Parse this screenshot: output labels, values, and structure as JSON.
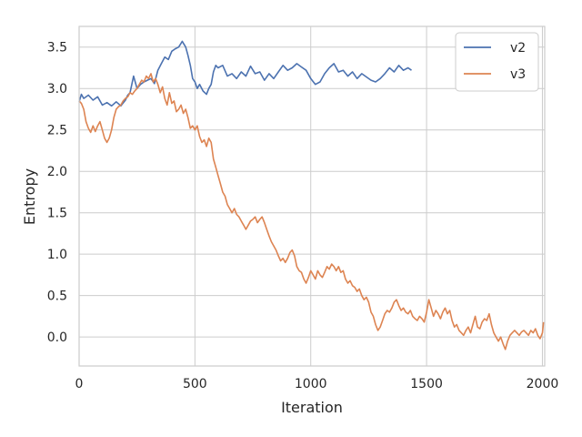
{
  "chart_data": {
    "type": "line",
    "xlabel": "Iteration",
    "ylabel": "Entropy",
    "xlim": [
      0,
      2010
    ],
    "ylim": [
      -0.35,
      3.75
    ],
    "xticks": [
      0,
      500,
      1000,
      1500,
      2000
    ],
    "yticks": [
      0.0,
      0.5,
      1.0,
      1.5,
      2.0,
      2.5,
      3.0,
      3.5
    ],
    "ytick_labels": [
      "0.0",
      "0.5",
      "1.0",
      "1.5",
      "2.0",
      "2.5",
      "3.0",
      "3.5"
    ],
    "grid": true,
    "legend_position": "top-right",
    "series": [
      {
        "name": "v2",
        "color": "#4c72b0",
        "points": [
          [
            0,
            2.84
          ],
          [
            10,
            2.93
          ],
          [
            20,
            2.88
          ],
          [
            40,
            2.92
          ],
          [
            60,
            2.86
          ],
          [
            80,
            2.9
          ],
          [
            100,
            2.8
          ],
          [
            120,
            2.83
          ],
          [
            140,
            2.79
          ],
          [
            160,
            2.84
          ],
          [
            180,
            2.79
          ],
          [
            200,
            2.86
          ],
          [
            210,
            2.92
          ],
          [
            220,
            2.95
          ],
          [
            235,
            3.15
          ],
          [
            250,
            3.0
          ],
          [
            265,
            3.05
          ],
          [
            280,
            3.08
          ],
          [
            295,
            3.1
          ],
          [
            310,
            3.12
          ],
          [
            325,
            3.06
          ],
          [
            340,
            3.22
          ],
          [
            355,
            3.3
          ],
          [
            370,
            3.38
          ],
          [
            385,
            3.35
          ],
          [
            400,
            3.45
          ],
          [
            415,
            3.48
          ],
          [
            430,
            3.5
          ],
          [
            445,
            3.57
          ],
          [
            460,
            3.5
          ],
          [
            470,
            3.4
          ],
          [
            480,
            3.28
          ],
          [
            490,
            3.12
          ],
          [
            500,
            3.08
          ],
          [
            510,
            3.0
          ],
          [
            520,
            3.05
          ],
          [
            535,
            2.97
          ],
          [
            550,
            2.93
          ],
          [
            560,
            3.0
          ],
          [
            570,
            3.05
          ],
          [
            580,
            3.2
          ],
          [
            590,
            3.28
          ],
          [
            600,
            3.25
          ],
          [
            620,
            3.28
          ],
          [
            640,
            3.15
          ],
          [
            660,
            3.18
          ],
          [
            680,
            3.12
          ],
          [
            700,
            3.2
          ],
          [
            720,
            3.15
          ],
          [
            740,
            3.27
          ],
          [
            760,
            3.18
          ],
          [
            780,
            3.2
          ],
          [
            800,
            3.1
          ],
          [
            820,
            3.18
          ],
          [
            840,
            3.12
          ],
          [
            860,
            3.2
          ],
          [
            880,
            3.28
          ],
          [
            900,
            3.22
          ],
          [
            920,
            3.25
          ],
          [
            940,
            3.3
          ],
          [
            960,
            3.26
          ],
          [
            980,
            3.22
          ],
          [
            1000,
            3.12
          ],
          [
            1020,
            3.05
          ],
          [
            1040,
            3.08
          ],
          [
            1060,
            3.18
          ],
          [
            1080,
            3.25
          ],
          [
            1100,
            3.3
          ],
          [
            1120,
            3.2
          ],
          [
            1140,
            3.22
          ],
          [
            1160,
            3.15
          ],
          [
            1180,
            3.2
          ],
          [
            1200,
            3.12
          ],
          [
            1220,
            3.18
          ],
          [
            1240,
            3.14
          ],
          [
            1260,
            3.1
          ],
          [
            1280,
            3.08
          ],
          [
            1300,
            3.12
          ],
          [
            1320,
            3.18
          ],
          [
            1340,
            3.25
          ],
          [
            1360,
            3.2
          ],
          [
            1380,
            3.28
          ],
          [
            1400,
            3.22
          ],
          [
            1420,
            3.25
          ],
          [
            1435,
            3.22
          ]
        ]
      },
      {
        "name": "v3",
        "color": "#dd8452",
        "points": [
          [
            0,
            2.85
          ],
          [
            10,
            2.82
          ],
          [
            20,
            2.75
          ],
          [
            30,
            2.6
          ],
          [
            40,
            2.52
          ],
          [
            50,
            2.47
          ],
          [
            60,
            2.55
          ],
          [
            70,
            2.48
          ],
          [
            80,
            2.55
          ],
          [
            90,
            2.6
          ],
          [
            100,
            2.5
          ],
          [
            110,
            2.4
          ],
          [
            120,
            2.35
          ],
          [
            130,
            2.4
          ],
          [
            140,
            2.5
          ],
          [
            150,
            2.65
          ],
          [
            160,
            2.75
          ],
          [
            170,
            2.78
          ],
          [
            180,
            2.8
          ],
          [
            190,
            2.85
          ],
          [
            200,
            2.88
          ],
          [
            210,
            2.9
          ],
          [
            220,
            2.95
          ],
          [
            230,
            2.93
          ],
          [
            240,
            2.97
          ],
          [
            250,
            3.0
          ],
          [
            260,
            3.05
          ],
          [
            270,
            3.1
          ],
          [
            280,
            3.08
          ],
          [
            290,
            3.15
          ],
          [
            300,
            3.12
          ],
          [
            310,
            3.18
          ],
          [
            320,
            3.08
          ],
          [
            330,
            3.12
          ],
          [
            340,
            3.05
          ],
          [
            350,
            2.95
          ],
          [
            360,
            3.02
          ],
          [
            370,
            2.88
          ],
          [
            380,
            2.8
          ],
          [
            390,
            2.95
          ],
          [
            400,
            2.82
          ],
          [
            410,
            2.85
          ],
          [
            420,
            2.72
          ],
          [
            430,
            2.75
          ],
          [
            440,
            2.8
          ],
          [
            450,
            2.7
          ],
          [
            460,
            2.75
          ],
          [
            470,
            2.65
          ],
          [
            480,
            2.52
          ],
          [
            490,
            2.55
          ],
          [
            500,
            2.5
          ],
          [
            510,
            2.55
          ],
          [
            520,
            2.42
          ],
          [
            530,
            2.35
          ],
          [
            540,
            2.38
          ],
          [
            550,
            2.3
          ],
          [
            560,
            2.4
          ],
          [
            570,
            2.35
          ],
          [
            580,
            2.15
          ],
          [
            590,
            2.05
          ],
          [
            600,
            1.95
          ],
          [
            610,
            1.85
          ],
          [
            620,
            1.75
          ],
          [
            630,
            1.7
          ],
          [
            640,
            1.6
          ],
          [
            650,
            1.55
          ],
          [
            660,
            1.5
          ],
          [
            670,
            1.55
          ],
          [
            680,
            1.48
          ],
          [
            690,
            1.45
          ],
          [
            700,
            1.4
          ],
          [
            710,
            1.35
          ],
          [
            720,
            1.3
          ],
          [
            730,
            1.35
          ],
          [
            740,
            1.4
          ],
          [
            750,
            1.42
          ],
          [
            760,
            1.45
          ],
          [
            770,
            1.38
          ],
          [
            780,
            1.42
          ],
          [
            790,
            1.45
          ],
          [
            800,
            1.38
          ],
          [
            810,
            1.3
          ],
          [
            820,
            1.22
          ],
          [
            830,
            1.15
          ],
          [
            840,
            1.1
          ],
          [
            850,
            1.05
          ],
          [
            860,
            0.98
          ],
          [
            870,
            0.92
          ],
          [
            880,
            0.95
          ],
          [
            890,
            0.9
          ],
          [
            900,
            0.95
          ],
          [
            910,
            1.02
          ],
          [
            920,
            1.05
          ],
          [
            930,
            0.98
          ],
          [
            940,
            0.85
          ],
          [
            950,
            0.8
          ],
          [
            960,
            0.78
          ],
          [
            970,
            0.7
          ],
          [
            980,
            0.65
          ],
          [
            990,
            0.72
          ],
          [
            1000,
            0.8
          ],
          [
            1010,
            0.75
          ],
          [
            1020,
            0.7
          ],
          [
            1030,
            0.8
          ],
          [
            1040,
            0.75
          ],
          [
            1050,
            0.72
          ],
          [
            1060,
            0.78
          ],
          [
            1070,
            0.85
          ],
          [
            1080,
            0.82
          ],
          [
            1090,
            0.88
          ],
          [
            1100,
            0.85
          ],
          [
            1110,
            0.8
          ],
          [
            1120,
            0.85
          ],
          [
            1130,
            0.78
          ],
          [
            1140,
            0.8
          ],
          [
            1150,
            0.7
          ],
          [
            1160,
            0.65
          ],
          [
            1170,
            0.68
          ],
          [
            1180,
            0.62
          ],
          [
            1190,
            0.6
          ],
          [
            1200,
            0.55
          ],
          [
            1210,
            0.58
          ],
          [
            1220,
            0.5
          ],
          [
            1230,
            0.45
          ],
          [
            1240,
            0.48
          ],
          [
            1250,
            0.42
          ],
          [
            1260,
            0.3
          ],
          [
            1270,
            0.25
          ],
          [
            1280,
            0.15
          ],
          [
            1290,
            0.08
          ],
          [
            1300,
            0.12
          ],
          [
            1310,
            0.2
          ],
          [
            1320,
            0.28
          ],
          [
            1330,
            0.32
          ],
          [
            1340,
            0.3
          ],
          [
            1350,
            0.35
          ],
          [
            1360,
            0.42
          ],
          [
            1370,
            0.45
          ],
          [
            1380,
            0.38
          ],
          [
            1390,
            0.32
          ],
          [
            1400,
            0.35
          ],
          [
            1410,
            0.3
          ],
          [
            1420,
            0.28
          ],
          [
            1430,
            0.32
          ],
          [
            1440,
            0.25
          ],
          [
            1450,
            0.22
          ],
          [
            1460,
            0.2
          ],
          [
            1470,
            0.25
          ],
          [
            1480,
            0.22
          ],
          [
            1490,
            0.18
          ],
          [
            1500,
            0.3
          ],
          [
            1510,
            0.45
          ],
          [
            1520,
            0.35
          ],
          [
            1530,
            0.25
          ],
          [
            1540,
            0.32
          ],
          [
            1550,
            0.28
          ],
          [
            1560,
            0.22
          ],
          [
            1570,
            0.3
          ],
          [
            1580,
            0.35
          ],
          [
            1590,
            0.28
          ],
          [
            1600,
            0.32
          ],
          [
            1610,
            0.2
          ],
          [
            1620,
            0.12
          ],
          [
            1630,
            0.15
          ],
          [
            1640,
            0.08
          ],
          [
            1650,
            0.05
          ],
          [
            1660,
            0.02
          ],
          [
            1670,
            0.08
          ],
          [
            1680,
            0.12
          ],
          [
            1690,
            0.05
          ],
          [
            1700,
            0.15
          ],
          [
            1710,
            0.25
          ],
          [
            1720,
            0.12
          ],
          [
            1730,
            0.1
          ],
          [
            1740,
            0.18
          ],
          [
            1750,
            0.22
          ],
          [
            1760,
            0.2
          ],
          [
            1770,
            0.28
          ],
          [
            1780,
            0.15
          ],
          [
            1790,
            0.05
          ],
          [
            1800,
            0.0
          ],
          [
            1810,
            -0.05
          ],
          [
            1820,
            0.0
          ],
          [
            1830,
            -0.08
          ],
          [
            1840,
            -0.15
          ],
          [
            1850,
            -0.05
          ],
          [
            1860,
            0.02
          ],
          [
            1870,
            0.05
          ],
          [
            1880,
            0.08
          ],
          [
            1890,
            0.05
          ],
          [
            1900,
            0.02
          ],
          [
            1910,
            0.06
          ],
          [
            1920,
            0.08
          ],
          [
            1930,
            0.05
          ],
          [
            1940,
            0.02
          ],
          [
            1950,
            0.08
          ],
          [
            1960,
            0.05
          ],
          [
            1970,
            0.1
          ],
          [
            1980,
            0.02
          ],
          [
            1990,
            -0.02
          ],
          [
            2000,
            0.05
          ],
          [
            2005,
            0.18
          ]
        ]
      }
    ]
  }
}
